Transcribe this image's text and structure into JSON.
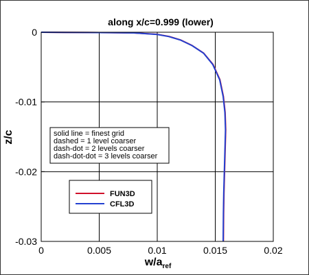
{
  "chart_data": {
    "type": "line",
    "title": "along x/c=0.999 (lower)",
    "xlabel": {
      "main": "w/a",
      "subscript": "ref"
    },
    "ylabel": "z/c",
    "xlim": [
      0,
      0.02
    ],
    "ylim": [
      -0.03,
      0
    ],
    "x_ticks": [
      "0",
      "0.005",
      "0.01",
      "0.015",
      "0.02"
    ],
    "y_ticks": [
      "0",
      "-0.01",
      "-0.02",
      "-0.03"
    ],
    "grid": true,
    "annotation_lines": [
      "solid line = finest grid",
      "dashed = 1 level coarser",
      "dash-dot = 2 levels coarser",
      "dash-dot-dot = 3 levels coarser"
    ],
    "legend_position": "lower-left",
    "series": [
      {
        "name": "FUN3D",
        "color": "#d0102a",
        "points": [
          [
            0.0,
            0.0
          ],
          [
            0.002,
            -2e-05
          ],
          [
            0.004,
            -4e-05
          ],
          [
            0.006,
            -6e-05
          ],
          [
            0.008,
            -0.0001
          ],
          [
            0.01,
            -0.0003
          ],
          [
            0.011,
            -0.0006
          ],
          [
            0.012,
            -0.0011
          ],
          [
            0.013,
            -0.0019
          ],
          [
            0.014,
            -0.003
          ],
          [
            0.0148,
            -0.0046
          ],
          [
            0.0154,
            -0.0068
          ],
          [
            0.0157,
            -0.0092
          ],
          [
            0.01585,
            -0.0115
          ],
          [
            0.0159,
            -0.014
          ],
          [
            0.01585,
            -0.017
          ],
          [
            0.0158,
            -0.02
          ],
          [
            0.01575,
            -0.023
          ],
          [
            0.01572,
            -0.026
          ],
          [
            0.0157,
            -0.03
          ]
        ]
      },
      {
        "name": "CFL3D",
        "color": "#2340d0",
        "points": [
          [
            0.0,
            0.0
          ],
          [
            0.002,
            -2e-05
          ],
          [
            0.004,
            -4e-05
          ],
          [
            0.006,
            -6e-05
          ],
          [
            0.008,
            -0.0001
          ],
          [
            0.01,
            -0.00032
          ],
          [
            0.011,
            -0.00062
          ],
          [
            0.012,
            -0.00112
          ],
          [
            0.013,
            -0.00192
          ],
          [
            0.014,
            -0.00302
          ],
          [
            0.01478,
            -0.00462
          ],
          [
            0.01538,
            -0.00682
          ],
          [
            0.01568,
            -0.00922
          ],
          [
            0.01583,
            -0.01152
          ],
          [
            0.01588,
            -0.01402
          ],
          [
            0.01583,
            -0.01702
          ],
          [
            0.01578,
            -0.02002
          ],
          [
            0.01573,
            -0.02302
          ],
          [
            0.0157,
            -0.02602
          ],
          [
            0.01568,
            -0.03
          ]
        ]
      }
    ]
  }
}
